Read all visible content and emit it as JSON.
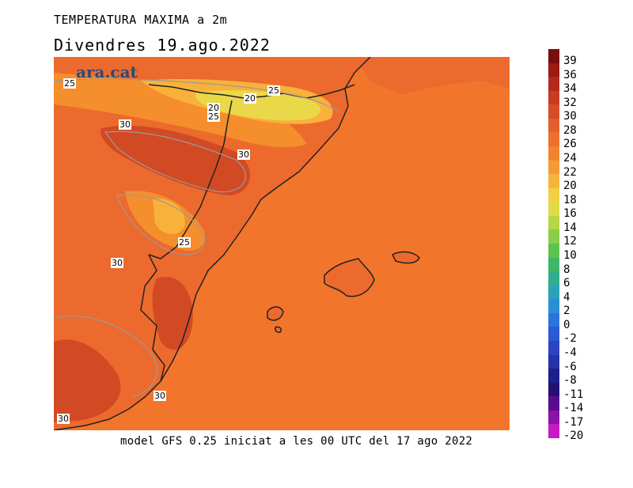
{
  "title": "TEMPERATURA MAXIMA a 2m",
  "subtitle": "Divendres  19.ago.2022",
  "footer": "model GFS 0.25 iniciat a les 00 UTC del 17 ago 2022",
  "logo": "ara.cat",
  "contour_labels": [
    "25",
    "30",
    "20",
    "25",
    "20",
    "25",
    "30",
    "25",
    "30",
    "30",
    "30"
  ],
  "colors": {
    "land_base": "#ec6a2d",
    "sea": "#f2752c",
    "hot": "#d24a24",
    "warm": "#f58e2c",
    "mild": "#f8b23a",
    "cool": "#e9d84a",
    "coast": "#222222",
    "contour": "#9a9a9a"
  },
  "colorbar": {
    "labels": [
      "39",
      "36",
      "34",
      "32",
      "30",
      "28",
      "26",
      "24",
      "22",
      "20",
      "18",
      "16",
      "14",
      "12",
      "10",
      "8",
      "6",
      "4",
      "2",
      "0",
      "-2",
      "-4",
      "-6",
      "-8",
      "-11",
      "-14",
      "-17",
      "-20"
    ],
    "colors": [
      "#7a0e0e",
      "#9a1a14",
      "#b22a1c",
      "#c83a22",
      "#d64c26",
      "#e35e2a",
      "#ee702c",
      "#f3842e",
      "#f59a34",
      "#f7b43c",
      "#f3cf44",
      "#dfdc4a",
      "#b8d64a",
      "#8ccc48",
      "#5cc34c",
      "#3fb76a",
      "#2fae8e",
      "#2aa2b8",
      "#2a8ed6",
      "#2a74dc",
      "#2a5ad4",
      "#2a44c4",
      "#2632a8",
      "#1e1e8e",
      "#241072",
      "#5a0c8e",
      "#8a12a8",
      "#c41cc4"
    ]
  }
}
